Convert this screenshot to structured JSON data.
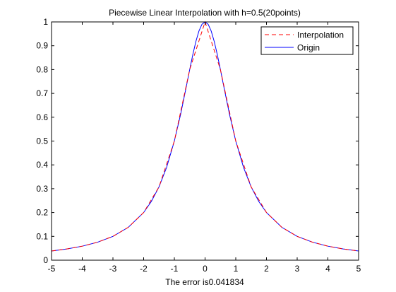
{
  "chart_data": {
    "type": "line",
    "title": "Piecewise Linear Interpolation with h=0.5(20points)",
    "xlabel": "The error is0.041834",
    "ylabel": "",
    "xlim": [
      -5,
      5
    ],
    "ylim": [
      0,
      1
    ],
    "xticks": [
      -5,
      -4,
      -3,
      -2,
      -1,
      0,
      1,
      2,
      3,
      4,
      5
    ],
    "xtick_labels": [
      "-5",
      "-4",
      "-3",
      "-2",
      "-1",
      "0",
      "1",
      "2",
      "3",
      "4",
      "5"
    ],
    "yticks": [
      0,
      0.1,
      0.2,
      0.3,
      0.4,
      0.5,
      0.6,
      0.7,
      0.8,
      0.9,
      1
    ],
    "ytick_labels": [
      "0",
      "0.1",
      "0.2",
      "0.3",
      "0.4",
      "0.5",
      "0.6",
      "0.7",
      "0.8",
      "0.9",
      "1"
    ],
    "grid": false,
    "legend_position": "top-right",
    "series": [
      {
        "name": "Interpolation",
        "color": "#ff0000",
        "style": "dashed",
        "x": [
          -5,
          -4.5,
          -4,
          -3.5,
          -3,
          -2.5,
          -2,
          -1.5,
          -1,
          -0.5,
          0,
          0.5,
          1,
          1.5,
          2,
          2.5,
          3,
          3.5,
          4,
          4.5,
          5
        ],
        "y": [
          0.0385,
          0.0471,
          0.0588,
          0.0755,
          0.1,
          0.1379,
          0.2,
          0.3077,
          0.5,
          0.8,
          1,
          0.8,
          0.5,
          0.3077,
          0.2,
          0.1379,
          0.1,
          0.0755,
          0.0588,
          0.0471,
          0.0385
        ]
      },
      {
        "name": "Origin",
        "color": "#0000ff",
        "style": "solid",
        "x": [
          -5,
          -4.5,
          -4,
          -3.5,
          -3,
          -2.5,
          -2,
          -1.75,
          -1.5,
          -1.25,
          -1,
          -0.8,
          -0.6,
          -0.5,
          -0.4,
          -0.3,
          -0.2,
          -0.1,
          0,
          0.1,
          0.2,
          0.3,
          0.4,
          0.5,
          0.6,
          0.8,
          1,
          1.25,
          1.5,
          1.75,
          2,
          2.5,
          3,
          3.5,
          4,
          4.5,
          5
        ],
        "y": [
          0.0385,
          0.0471,
          0.0588,
          0.0755,
          0.1,
          0.1379,
          0.2,
          0.2462,
          0.3077,
          0.3902,
          0.5,
          0.6098,
          0.7353,
          0.8,
          0.8621,
          0.9174,
          0.9615,
          0.9901,
          1,
          0.9901,
          0.9615,
          0.9174,
          0.8621,
          0.8,
          0.7353,
          0.6098,
          0.5,
          0.3902,
          0.3077,
          0.2462,
          0.2,
          0.1379,
          0.1,
          0.0755,
          0.0588,
          0.0471,
          0.0385
        ]
      }
    ]
  }
}
